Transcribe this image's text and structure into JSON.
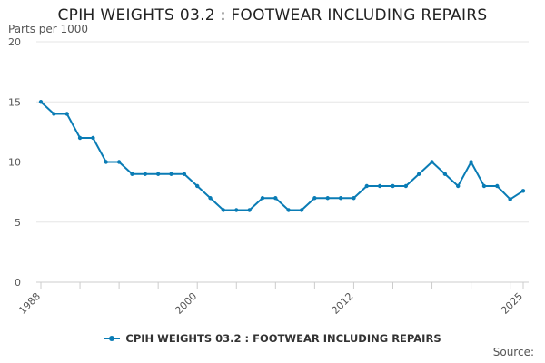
{
  "title": "CPIH WEIGHTS 03.2 : FOOTWEAR INCLUDING REPAIRS",
  "y_unit": "Parts per 1000",
  "source_label": "Source:",
  "legend": {
    "label": "CPIH WEIGHTS 03.2 : FOOTWEAR INCLUDING REPAIRS"
  },
  "colors": {
    "series": "#0a7cb5",
    "grid": "#e6e6e6",
    "axis": "#cccccc"
  },
  "chart_data": {
    "type": "line",
    "title": "CPIH WEIGHTS 03.2 : FOOTWEAR INCLUDING REPAIRS",
    "ylabel": "Parts per 1000",
    "xlabel": "",
    "ylim": [
      0,
      20
    ],
    "yticks": [
      0,
      5,
      10,
      15,
      20
    ],
    "xlim": [
      1988,
      2025
    ],
    "xtick_labels": [
      "1988",
      "2000",
      "2012",
      "2025"
    ],
    "grid": true,
    "legend_position": "bottom",
    "x": [
      1988,
      1989,
      1990,
      1991,
      1992,
      1993,
      1994,
      1995,
      1996,
      1997,
      1998,
      1999,
      2000,
      2001,
      2002,
      2003,
      2004,
      2005,
      2006,
      2007,
      2008,
      2009,
      2010,
      2011,
      2012,
      2013,
      2014,
      2015,
      2016,
      2017,
      2018,
      2019,
      2020,
      2021,
      2022,
      2023,
      2024,
      2025
    ],
    "series": [
      {
        "name": "CPIH WEIGHTS 03.2 : FOOTWEAR INCLUDING REPAIRS",
        "values": [
          15,
          14,
          14,
          12,
          12,
          10,
          10,
          9,
          9,
          9,
          9,
          9,
          8,
          7,
          6,
          6,
          6,
          7,
          7,
          6,
          6,
          7,
          7,
          7,
          7,
          8,
          8,
          8,
          8,
          9,
          10,
          9,
          8,
          10,
          8,
          8,
          6.9,
          7.6
        ]
      }
    ]
  }
}
